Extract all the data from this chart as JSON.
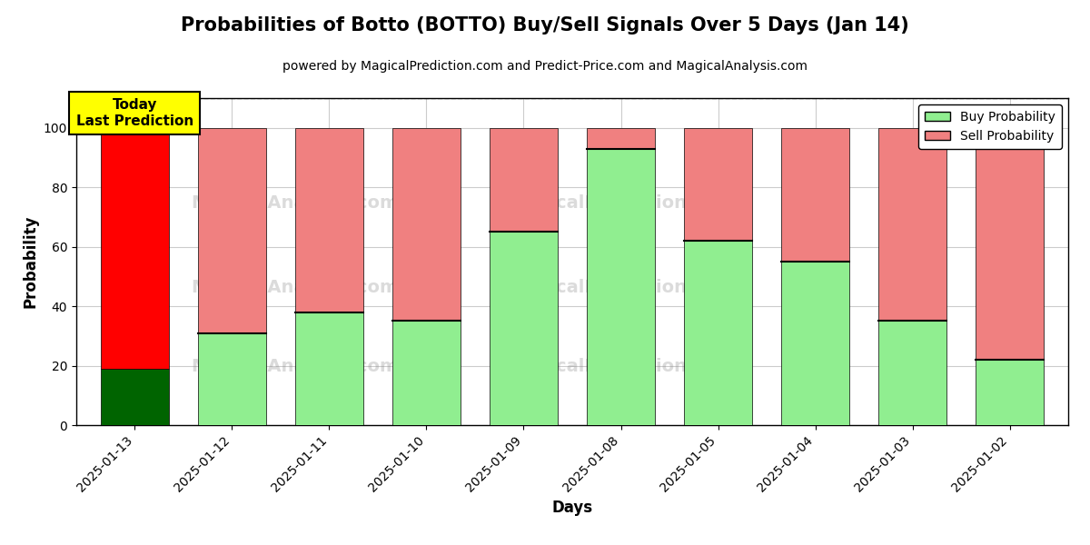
{
  "title": "Probabilities of Botto (BOTTO) Buy/Sell Signals Over 5 Days (Jan 14)",
  "subtitle": "powered by MagicalPrediction.com and Predict-Price.com and MagicalAnalysis.com",
  "xlabel": "Days",
  "ylabel": "Probability",
  "dates": [
    "2025-01-13",
    "2025-01-12",
    "2025-01-11",
    "2025-01-10",
    "2025-01-09",
    "2025-01-08",
    "2025-01-05",
    "2025-01-04",
    "2025-01-03",
    "2025-01-02"
  ],
  "buy_values": [
    19,
    31,
    38,
    35,
    65,
    93,
    62,
    55,
    35,
    22
  ],
  "sell_values": [
    81,
    69,
    62,
    65,
    35,
    7,
    38,
    45,
    65,
    78
  ],
  "today_buy_color": "#006400",
  "today_sell_color": "#ff0000",
  "buy_color": "#90ee90",
  "sell_color": "#f08080",
  "today_label_bg": "#ffff00",
  "today_label_text": "Today\nLast Prediction",
  "legend_buy_label": "Buy Probability",
  "legend_sell_label": "Sell Probability",
  "ylim": [
    0,
    110
  ],
  "dashed_line_y": 110,
  "background_color": "#ffffff",
  "grid_color": "#cccccc",
  "title_fontsize": 15,
  "subtitle_fontsize": 10,
  "axis_label_fontsize": 12,
  "tick_fontsize": 10
}
